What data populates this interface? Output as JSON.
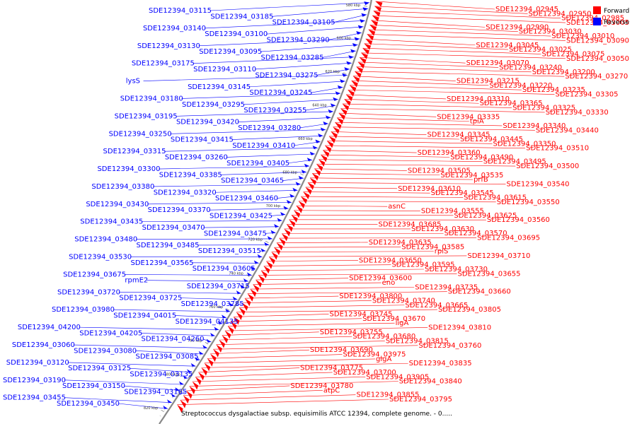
{
  "caption": "Streptococcus dysgalactiae subsp. equisimilis ATCC 12394, complete genome. - 0.....",
  "legend": [
    {
      "label": "Forward",
      "color": "#ff0000"
    },
    {
      "label": "Reverse",
      "color": "#0000ff"
    }
  ],
  "colors": {
    "forward": "#ff0000",
    "reverse": "#0000ff",
    "backbone": "#888888"
  },
  "ticks": [
    "580 kbp",
    "600 kbp",
    "620 kbp",
    "640 kbp",
    "660 kbp",
    "680 kbp",
    "700 kbp",
    "720 kbp",
    "740 kbp",
    "760 kbp",
    "780 kbp",
    "800 kbp",
    "820 kbp"
  ],
  "reverse_genes": [
    "SDE12394_03115",
    "SDE12394_03185",
    "SDE12394_03105",
    "SDE12394_03140",
    "SDE12394_03100",
    "SDE12394_03290",
    "SDE12394_03130",
    "SDE12394_03095",
    "SDE12394_03285",
    "SDE12394_03175",
    "SDE12394_03110",
    "SDE12394_03275",
    "lysS",
    "SDE12394_03145",
    "SDE12394_03245",
    "SDE12394_03180",
    "SDE12394_03295",
    "SDE12394_03255",
    "SDE12394_03195",
    "SDE12394_03420",
    "SDE12394_03280",
    "SDE12394_03250",
    "SDE12394_03415",
    "SDE12394_03410",
    "SDE12394_03315",
    "SDE12394_03260",
    "SDE12394_03405",
    "SDE12394_03300",
    "SDE12394_03385",
    "SDE12394_03465",
    "SDE12394_03380",
    "SDE12394_03320",
    "SDE12394_03460",
    "SDE12394_03430",
    "SDE12394_03370",
    "SDE12394_03425",
    "SDE12394_03435",
    "SDE12394_03470",
    "SDE12394_03475",
    "SDE12394_03480",
    "SDE12394_03485",
    "SDE12394_03515",
    "SDE12394_03530",
    "SDE12394_03565",
    "SDE12394_03605",
    "SDE12394_03675",
    "rpmE2",
    "SDE12394_03715",
    "SDE12394_03720",
    "SDE12394_03725",
    "SDE12394_03785",
    "SDE12394_03980",
    "SDE12394_04015",
    "SDE12394_04135",
    "SDE12394_04200",
    "SDE12394_04205",
    "SDE12394_04260",
    "SDE12394_03060",
    "SDE12394_03080",
    "SDE12394_03085",
    "SDE12394_03120",
    "SDE12394_03125",
    "SDE12394_03135",
    "SDE12394_03190",
    "SDE12394_03150",
    "SDE12394_03165",
    "SDE12394_03455",
    "SDE12394_03450"
  ],
  "forward_genes": [
    "SDE12394_02945",
    "SDE12394_02950",
    "SDE12394_02985",
    "SDE12394_03005",
    "SDE12394_02990",
    "SDE12394_03030",
    "SDE12394_03010",
    "SDE12394_03090",
    "SDE12394_03045",
    "SDE12394_03025",
    "SDE12394_03075",
    "SDE12394_03050",
    "SDE12394_03070",
    "SDE12394_03240",
    "SDE12394_03200",
    "SDE12394_03270",
    "SDE12394_03215",
    "SDE12394_03220",
    "SDE12394_03235",
    "SDE12394_03305",
    "SDE12394_03310",
    "SDE12394_03365",
    "SDE12394_03325",
    "SDE12394_03330",
    "SDE12394_03335",
    "tpiA",
    "SDE12394_03340",
    "SDE12394_03440",
    "SDE12394_03345",
    "SDE12394_03445",
    "SDE12394_03350",
    "SDE12394_03510",
    "SDE12394_03360",
    "SDE12394_03490",
    "SDE12394_03495",
    "SDE12394_03500",
    "SDE12394_03505",
    "SDE12394_03535",
    "prfB",
    "SDE12394_03540",
    "SDE12394_03610",
    "SDE12394_03545",
    "SDE12394_03615",
    "SDE12394_03550",
    "asnC",
    "SDE12394_03555",
    "SDE12394_03625",
    "SDE12394_03560",
    "SDE12394_03685",
    "SDE12394_03630",
    "SDE12394_03570",
    "SDE12394_03695",
    "SDE12394_03635",
    "SDE12394_03585",
    "rplS",
    "SDE12394_03710",
    "SDE12394_03650",
    "SDE12394_03595",
    "SDE12394_03730",
    "SDE12394_03655",
    "SDE12394_03600",
    "eno",
    "SDE12394_03735",
    "SDE12394_03660",
    "SDE12394_03800",
    "SDE12394_03740",
    "SDE12394_03665",
    "SDE12394_03805",
    "SDE12394_03745",
    "SDE12394_03670",
    "ligA",
    "SDE12394_03810",
    "SDE12394_03755",
    "SDE12394_03680",
    "SDE12394_03815",
    "SDE12394_03760",
    "SDE12394_03690",
    "SDE12394_03975",
    "glgA",
    "SDE12394_03835",
    "SDE12394_03775",
    "SDE12394_03700",
    "SDE12394_03905",
    "SDE12394_03840",
    "SDE12394_03780",
    "atpC",
    "SDE12394_03855",
    "SDE12394_03795"
  ]
}
